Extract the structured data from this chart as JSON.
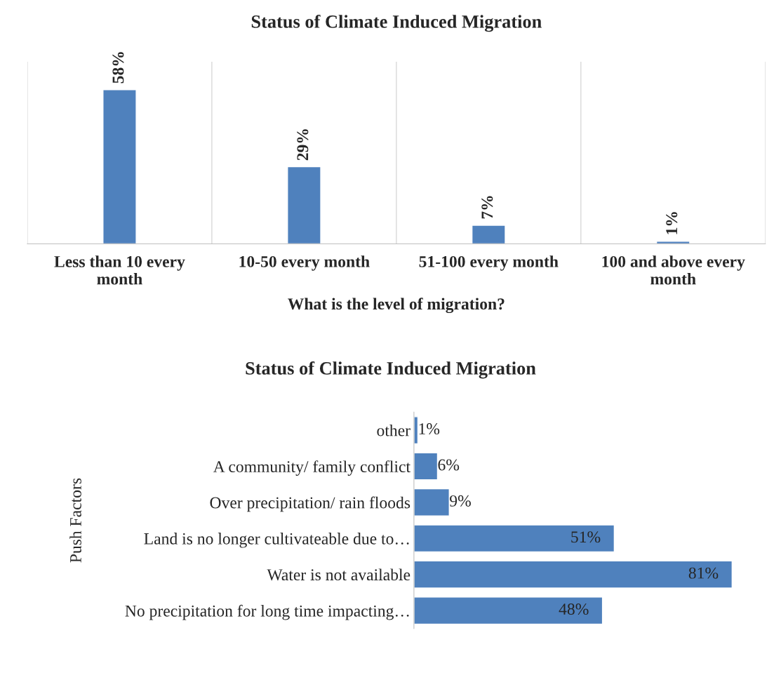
{
  "chart_data": [
    {
      "type": "bar",
      "title": "Status of Climate Induced Migration",
      "xlabel": "What is the level of migration?",
      "categories": [
        "Less than 10 every month",
        "10-50 every month",
        "51-100 every month",
        "100 and above every month"
      ],
      "values": [
        58,
        29,
        7,
        1
      ],
      "value_labels": [
        "58%",
        "29%",
        "7%",
        "1%"
      ],
      "color": "#4f81bd",
      "grid": "x",
      "tick_labels": "x",
      "legend": false
    },
    {
      "type": "bar",
      "orientation": "horizontal",
      "title": "Status of Climate Induced Migration",
      "ylabel": "Push Factors",
      "categories": [
        "other",
        "A community/ family conflict",
        "Over precipitation/ rain floods",
        "Land is no longer cultivateable due to…",
        "Water is not available",
        "No precipitation for long time impacting…"
      ],
      "values": [
        1,
        6,
        9,
        51,
        81,
        48
      ],
      "value_labels": [
        "1%",
        "6%",
        "9%",
        "51%",
        "81%",
        "48%"
      ],
      "color": "#4f81bd",
      "tick_labels": "y",
      "legend": false
    }
  ]
}
